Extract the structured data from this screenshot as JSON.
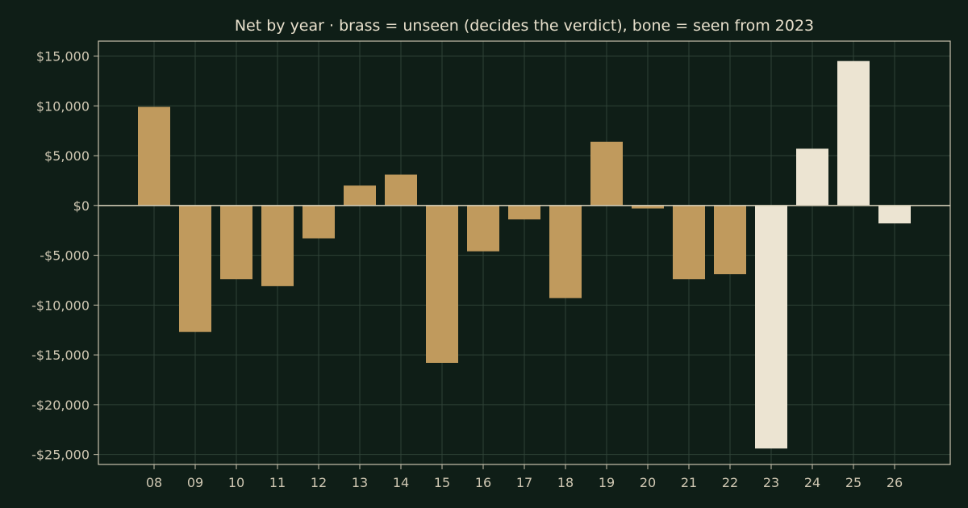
{
  "chart_data": {
    "type": "bar",
    "title": "Net by year  ·  brass = unseen (decides the verdict), bone = seen from 2023",
    "categories": [
      "08",
      "09",
      "10",
      "11",
      "12",
      "13",
      "14",
      "15",
      "16",
      "17",
      "18",
      "19",
      "20",
      "21",
      "22",
      "23",
      "24",
      "25",
      "26"
    ],
    "values": [
      9900,
      -12700,
      -7400,
      -8100,
      -3300,
      2000,
      3100,
      -15800,
      -4600,
      -1400,
      -9300,
      6400,
      -300,
      -7400,
      -6900,
      -24400,
      5700,
      14500,
      -1800
    ],
    "groups": [
      "unseen",
      "unseen",
      "unseen",
      "unseen",
      "unseen",
      "unseen",
      "unseen",
      "unseen",
      "unseen",
      "unseen",
      "unseen",
      "unseen",
      "unseen",
      "unseen",
      "unseen",
      "seen",
      "seen",
      "seen",
      "seen"
    ],
    "ylim": [
      -26000,
      16500
    ],
    "yticks": [
      15000,
      10000,
      5000,
      0,
      -5000,
      -10000,
      -15000,
      -20000,
      -25000
    ],
    "ytick_labels": [
      "$15,000",
      "$10,000",
      "$5,000",
      "$0",
      "-$5,000",
      "-$10,000",
      "-$15,000",
      "-$20,000",
      "-$25,000"
    ],
    "grid": true,
    "colors": {
      "unseen": "#c09a5d",
      "seen": "#ece4d2",
      "background": "#0f1e17"
    }
  }
}
